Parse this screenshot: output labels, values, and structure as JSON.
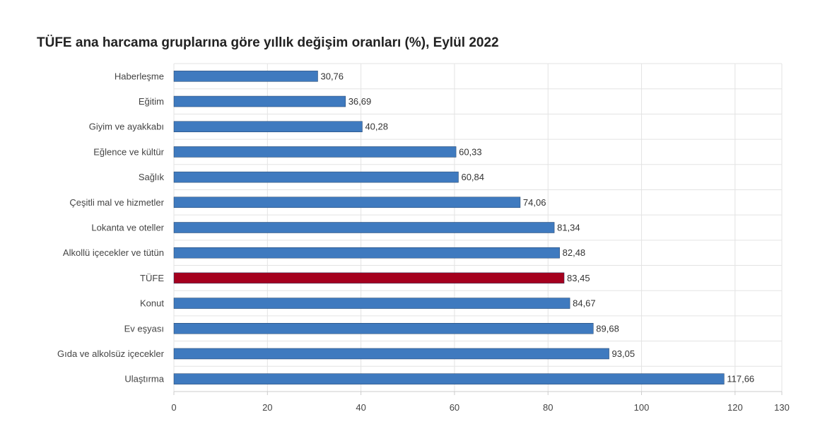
{
  "chart_data": {
    "type": "bar",
    "orientation": "horizontal",
    "title": "TÜFE ana harcama gruplarına göre yıllık değişim oranları (%), Eylül 2022",
    "categories": [
      "Haberleşme",
      "Eğitim",
      "Giyim ve ayakkabı",
      "Eğlence ve kültür",
      "Sağlık",
      "Çeşitli mal ve hizmetler",
      "Lokanta ve oteller",
      "Alkollü içecekler ve tütün",
      "TÜFE",
      "Konut",
      "Ev eşyası",
      "Gıda ve alkolsüz içecekler",
      "Ulaştırma"
    ],
    "values": [
      30.76,
      36.69,
      40.28,
      60.33,
      60.84,
      74.06,
      81.34,
      82.48,
      83.45,
      84.67,
      89.68,
      93.05,
      117.66
    ],
    "value_labels": [
      "30,76",
      "36,69",
      "40,28",
      "60,33",
      "60,84",
      "74,06",
      "81,34",
      "82,48",
      "83,45",
      "84,67",
      "89,68",
      "93,05",
      "117,66"
    ],
    "xlim": [
      0,
      130
    ],
    "xticks": [
      0,
      20,
      40,
      60,
      80,
      100,
      120,
      130
    ],
    "grid": true,
    "colors": {
      "default": "#3f7abf",
      "highlight": "#a5001e",
      "highlight_category": "TÜFE",
      "grid": "#e3e3e3"
    }
  }
}
